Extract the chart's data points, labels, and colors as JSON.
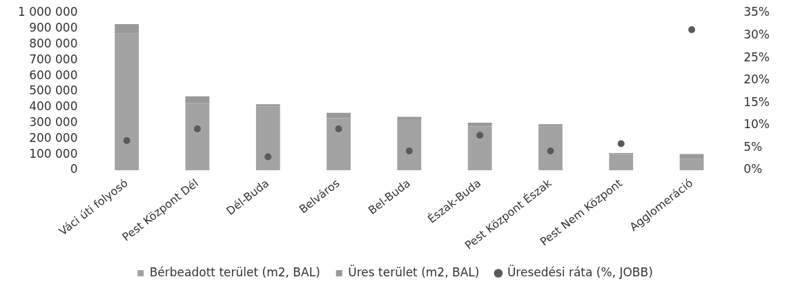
{
  "chart_data": {
    "type": "bar",
    "stacked": true,
    "categories": [
      "Váci úti folyosó",
      "Pest Központ Dél",
      "Dél-Buda",
      "Belváros",
      "Bel-Buda",
      "Észak-Buda",
      "Pest Központ Észak",
      "Pest Nem Központ",
      "Agglomeráció"
    ],
    "series": [
      {
        "name": "Bérbeadott terület (m2, BAL)",
        "color": "#a3a3a3",
        "values": [
          869000,
          427000,
          407000,
          331000,
          325000,
          279000,
          280000,
          104000,
          71000
        ]
      },
      {
        "name": "Üres terület (m2, BAL)",
        "color": "#999999",
        "values": [
          61000,
          43000,
          13000,
          34000,
          15000,
          24000,
          13000,
          6000,
          32000
        ]
      },
      {
        "name": "Üresedési ráta (%, JOBB)",
        "type": "scatter",
        "axis": "y2",
        "color": "#5a5a5a",
        "marker": "circle",
        "x": [
          "Váci úti folyosó",
          "Pest Központ Dél",
          "Dél-Buda",
          "Belváros",
          "Bel-Buda",
          "Észak-Buda",
          "Pest Központ Észak",
          "Pest Nem Központ",
          "Agglomeráció"
        ],
        "values": [
          6.6,
          9.2,
          3.0,
          9.2,
          4.3,
          7.8,
          4.3,
          5.9,
          31.3
        ]
      }
    ],
    "ylim": [
      0,
      1000000
    ],
    "yticks": [
      0,
      {
        "value": 100000,
        "label": "100 000"
      },
      {
        "value": 200000,
        "label": "200 000"
      },
      {
        "value": 300000,
        "label": "300 000"
      },
      {
        "value": 400000,
        "label": "400 000"
      },
      {
        "value": 500000,
        "label": "500 000"
      },
      {
        "value": 600000,
        "label": "600 000"
      },
      {
        "value": 700000,
        "label": "700 000"
      },
      {
        "value": 800000,
        "label": "800 000"
      },
      {
        "value": 900000,
        "label": "900 000"
      },
      {
        "value": 1000000,
        "label": "1 000 000"
      }
    ],
    "y2lim": [
      0,
      35
    ],
    "y2ticks": [
      {
        "value": 0,
        "label": "0%"
      },
      {
        "value": 5,
        "label": "5%"
      },
      {
        "value": 10,
        "label": "10%"
      },
      {
        "value": 15,
        "label": "15%"
      },
      {
        "value": 20,
        "label": "20%"
      },
      {
        "value": 25,
        "label": "25%"
      },
      {
        "value": 30,
        "label": "30%"
      },
      {
        "value": 35,
        "label": "35%"
      }
    ],
    "legend": "bottom",
    "grid": false
  }
}
